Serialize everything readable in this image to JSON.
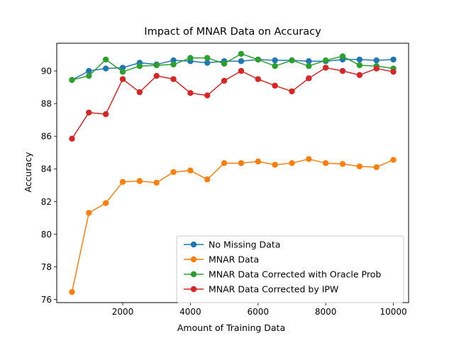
{
  "chart_data": {
    "type": "line",
    "title": "Impact of MNAR Data on Accuracy",
    "xlabel": "Amount of Training Data",
    "ylabel": "Accuracy",
    "xlim": [
      50,
      10450
    ],
    "ylim": [
      75.8,
      91.7
    ],
    "xticks": [
      2000,
      4000,
      6000,
      8000,
      10000
    ],
    "xtick_labels": [
      "2000",
      "4000",
      "6000",
      "8000",
      "10000"
    ],
    "yticks": [
      76,
      78,
      80,
      82,
      84,
      86,
      88,
      90
    ],
    "ytick_labels": [
      "76",
      "78",
      "80",
      "82",
      "84",
      "86",
      "88",
      "90"
    ],
    "grid": false,
    "legend_position": "lower-right",
    "x": [
      500,
      1000,
      1500,
      2000,
      2500,
      3000,
      3500,
      4000,
      4500,
      5000,
      5500,
      6000,
      6500,
      7000,
      7500,
      8000,
      8500,
      9000,
      9500,
      10000
    ],
    "series": [
      {
        "name": "No Missing Data",
        "color": "#1f77b4",
        "values": [
          89.45,
          90.0,
          90.15,
          90.2,
          90.5,
          90.4,
          90.65,
          90.6,
          90.5,
          90.6,
          90.6,
          90.7,
          90.65,
          90.65,
          90.6,
          90.6,
          90.7,
          90.7,
          90.65,
          90.7
        ]
      },
      {
        "name": "MNAR Data",
        "color": "#ff7f0e",
        "values": [
          76.45,
          81.3,
          81.9,
          83.2,
          83.25,
          83.15,
          83.8,
          83.9,
          83.35,
          84.35,
          84.35,
          84.45,
          84.25,
          84.35,
          84.6,
          84.35,
          84.3,
          84.15,
          84.1,
          84.55
        ]
      },
      {
        "name": "MNAR Data Corrected with Oracle Prob",
        "color": "#2ca02c",
        "values": [
          89.45,
          89.7,
          90.7,
          89.95,
          90.3,
          90.35,
          90.4,
          90.8,
          90.8,
          90.45,
          91.05,
          90.7,
          90.3,
          90.65,
          90.3,
          90.65,
          90.9,
          90.35,
          90.3,
          90.15
        ]
      },
      {
        "name": "MNAR Data Corrected by IPW",
        "color": "#d62728",
        "values": [
          85.85,
          87.45,
          87.35,
          89.5,
          88.7,
          89.7,
          89.5,
          88.65,
          88.5,
          89.4,
          90.0,
          89.5,
          89.1,
          88.75,
          89.55,
          90.2,
          90.0,
          89.75,
          90.15,
          89.95
        ]
      }
    ]
  }
}
